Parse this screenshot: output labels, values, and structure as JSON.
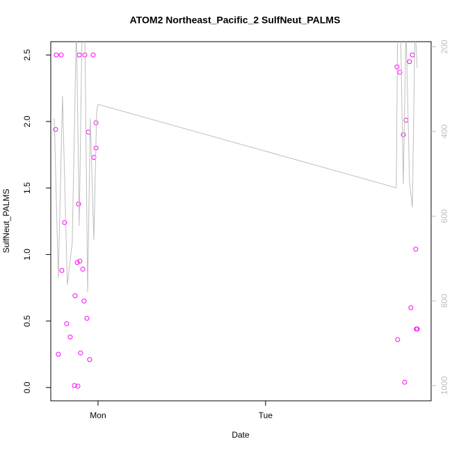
{
  "chart_data": {
    "type": "scatter",
    "title": "ATOM2 Northeast_Pacific_2 SulfNeut_PALMS",
    "x_label": "Date",
    "y_label": "SulfNeut_PALMS",
    "xlim": [
      0.718,
      2.988
    ],
    "xticks": [
      {
        "value": 1,
        "label": "Mon"
      },
      {
        "value": 2,
        "label": "Tue"
      }
    ],
    "ylim": [
      -0.1,
      2.6
    ],
    "yticks": [
      {
        "value": 0,
        "label": "0.0"
      },
      0.5,
      {
        "value": 1,
        "label": "1.0"
      },
      1.5,
      {
        "value": 2,
        "label": "2.0"
      },
      2.5
    ],
    "y2lim": [
      188,
      1036
    ],
    "y2_inverted": true,
    "y2ticks": [
      200,
      400,
      600,
      800,
      1000
    ],
    "series": [
      {
        "type": "scatter",
        "color": "#ff00ff",
        "x": [
          0.747,
          0.751,
          0.763,
          0.78,
          0.784,
          0.801,
          0.813,
          0.834,
          0.859,
          0.863,
          0.876,
          0.88,
          0.884,
          0.888,
          0.892,
          0.896,
          0.909,
          0.917,
          0.921,
          0.934,
          0.942,
          0.95,
          0.971,
          0.975,
          0.988,
          0.988,
          2.784,
          2.788,
          2.801,
          2.822,
          2.83,
          2.838,
          2.859,
          2.867,
          2.876,
          2.896,
          2.9,
          2.905
        ],
        "values": [
          1.94,
          2.5,
          0.25,
          2.5,
          0.88,
          1.24,
          0.48,
          0.38,
          0.015,
          0.69,
          0.94,
          0.01,
          1.38,
          2.5,
          0.95,
          0.26,
          0.89,
          0.65,
          2.5,
          0.52,
          1.92,
          0.21,
          2.5,
          1.73,
          1.8,
          1.99,
          2.41,
          0.36,
          2.37,
          1.9,
          0.04,
          2.01,
          2.45,
          0.6,
          2.5,
          1.04,
          0.44,
          0.44
        ]
      },
      {
        "type": "line",
        "axis": "y2",
        "color": "#bebebe",
        "x": [
          0.739,
          0.763,
          0.788,
          0.817,
          0.846,
          0.871,
          0.888,
          0.905,
          0.921,
          0.938,
          0.954,
          0.975,
          0.992,
          1.0,
          2.78,
          2.788,
          2.805,
          2.822,
          2.838,
          2.859,
          2.876,
          2.892,
          2.905
        ],
        "values": [
          369,
          746,
          316,
          762,
          664,
          150,
          623,
          150,
          150,
          779,
          369,
          656,
          352,
          336,
          533,
          150,
          150,
          525,
          150,
          520,
          579,
          150,
          250
        ]
      }
    ]
  }
}
